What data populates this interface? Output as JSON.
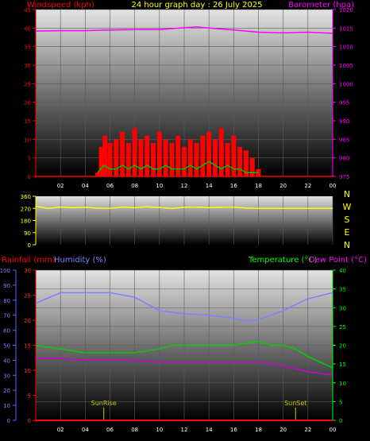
{
  "header": {
    "windspeed_label": "Windspeed (kph)",
    "title": "24 hour graph day : 26 July 2025",
    "barometer_label": "Barometer (hpa)"
  },
  "colors": {
    "wind": "#ff0000",
    "gust": "#00c000",
    "wind_avg": "#ffffff",
    "barometer": "#ff00ff",
    "direction": "#ffff00",
    "rain": "#ff0000",
    "humidity": "#8080ff",
    "temperature": "#00d000",
    "dewpoint": "#d000d0",
    "sunmarker": "#c8c800"
  },
  "chart_data": [
    {
      "type": "line",
      "panel": "wind-barometer",
      "x_ticks": [
        "02",
        "04",
        "06",
        "08",
        "10",
        "12",
        "14",
        "16",
        "18",
        "20",
        "22",
        "00"
      ],
      "x_range": [
        0,
        24
      ],
      "y_left": {
        "label": "Windspeed (kph)",
        "range": [
          0,
          45
        ],
        "ticks": [
          0,
          5,
          10,
          15,
          20,
          25,
          30,
          35,
          40,
          45
        ]
      },
      "y_right": {
        "label": "Barometer (hpa)",
        "range": [
          975,
          1020
        ],
        "ticks": [
          975,
          980,
          985,
          990,
          995,
          1000,
          1005,
          1010,
          1015,
          1020
        ]
      },
      "series": [
        {
          "name": "Windspeed",
          "axis": "left",
          "x": [
            5.0,
            5.3,
            5.6,
            6.0,
            6.5,
            7.0,
            7.5,
            8.0,
            8.5,
            9.0,
            9.5,
            10.0,
            10.5,
            11.0,
            11.5,
            12.0,
            12.5,
            13.0,
            13.5,
            14.0,
            14.5,
            15.0,
            15.5,
            16.0,
            16.5,
            17.0,
            17.5,
            18.0
          ],
          "y": [
            1,
            8,
            11,
            9,
            10,
            12,
            9,
            13,
            10,
            11,
            9,
            12,
            10,
            9,
            11,
            8,
            10,
            9,
            11,
            12,
            10,
            13,
            9,
            11,
            8,
            7,
            5,
            2
          ]
        },
        {
          "name": "Gust",
          "axis": "left",
          "x": [
            5.0,
            5.5,
            6.0,
            6.5,
            7.0,
            7.5,
            8.0,
            8.5,
            9.0,
            9.5,
            10.0,
            10.5,
            11.0,
            11.5,
            12.0,
            12.5,
            13.0,
            13.5,
            14.0,
            14.5,
            15.0,
            15.5,
            16.0,
            16.5,
            17.0,
            17.5,
            18.0
          ],
          "y": [
            1,
            3,
            2,
            2,
            3,
            2,
            3,
            2,
            3,
            2,
            2,
            3,
            2,
            2,
            2,
            3,
            2,
            3,
            4,
            3,
            2,
            3,
            2,
            2,
            1,
            1,
            1
          ]
        },
        {
          "name": "Barometer",
          "axis": "right",
          "x": [
            0,
            2,
            4,
            6,
            8,
            10,
            12,
            13,
            14,
            16,
            18,
            20,
            22,
            24
          ],
          "y": [
            1014.2,
            1014.3,
            1014.3,
            1014.5,
            1014.6,
            1014.6,
            1015.1,
            1015.3,
            1015.0,
            1014.5,
            1013.9,
            1013.7,
            1013.9,
            1013.6
          ]
        }
      ]
    },
    {
      "type": "scatter",
      "panel": "wind-direction",
      "x_range": [
        0,
        24
      ],
      "y_left_ticks": [
        360,
        270,
        180,
        90,
        0
      ],
      "y_right_labels": [
        "N",
        "W",
        "S",
        "E",
        "N"
      ],
      "series": [
        {
          "name": "Direction",
          "x": [
            0,
            1,
            2,
            3,
            4,
            5,
            6,
            7,
            8,
            9,
            10,
            11,
            12,
            13,
            14,
            15,
            16,
            17,
            18,
            19,
            20,
            21,
            22,
            23,
            24
          ],
          "y": [
            285,
            270,
            280,
            275,
            278,
            272,
            270,
            280,
            275,
            282,
            276,
            270,
            278,
            280,
            275,
            278,
            280,
            272,
            270,
            270,
            270,
            270,
            270,
            270,
            270
          ]
        }
      ]
    },
    {
      "type": "line",
      "panel": "rain-humidity-temperature",
      "x_ticks": [
        "02",
        "04",
        "06",
        "08",
        "10",
        "12",
        "14",
        "16",
        "18",
        "20",
        "22",
        "00"
      ],
      "x_range": [
        0,
        24
      ],
      "y_left_outer": {
        "label": "Rainfall (mm)",
        "range": [
          0,
          100
        ],
        "ticks": [
          0,
          10,
          20,
          30,
          40,
          50,
          60,
          70,
          80,
          90,
          100
        ]
      },
      "y_left_inner": {
        "label": "Humidity (%)",
        "range": [
          0,
          30
        ],
        "ticks": [
          0,
          5,
          10,
          15,
          20,
          25,
          30
        ]
      },
      "y_right": {
        "label": "Temperature (°C)",
        "range": [
          0,
          40
        ],
        "ticks": [
          0,
          5,
          10,
          15,
          20,
          25,
          30,
          35,
          40
        ]
      },
      "dewpoint_label": "Dew Point (°C)",
      "series": [
        {
          "name": "Humidity",
          "axis": "left_outer",
          "x": [
            0,
            2,
            4,
            6,
            8,
            10,
            12,
            14,
            16,
            17,
            18,
            19,
            20,
            22,
            24
          ],
          "y": [
            78,
            85,
            85,
            85,
            82,
            73,
            71,
            70,
            68,
            66,
            67,
            70,
            73,
            81,
            85
          ]
        },
        {
          "name": "Temperature",
          "axis": "right",
          "x": [
            0,
            2,
            4,
            6,
            8,
            10,
            11,
            12,
            14,
            16,
            18,
            19,
            20,
            21,
            22,
            24
          ],
          "y": [
            20,
            19,
            18,
            18,
            18,
            19,
            20,
            20,
            20,
            20,
            21,
            20,
            20,
            19,
            17,
            14
          ]
        },
        {
          "name": "Dew Point",
          "axis": "right",
          "x": [
            0,
            2,
            4,
            6,
            8,
            10,
            12,
            14,
            16,
            18,
            19,
            20,
            22,
            24
          ],
          "y": [
            16.5,
            16.5,
            16,
            16,
            16,
            15.5,
            15.5,
            15.5,
            15.5,
            15.5,
            15,
            14.5,
            13,
            12
          ]
        },
        {
          "name": "Rainfall",
          "axis": "left_outer",
          "x": [
            0,
            24
          ],
          "y": [
            0,
            0
          ]
        }
      ],
      "annotations": [
        {
          "label": "SunRise",
          "x": 5.5
        },
        {
          "label": "SunSet",
          "x": 21.0
        }
      ]
    }
  ]
}
